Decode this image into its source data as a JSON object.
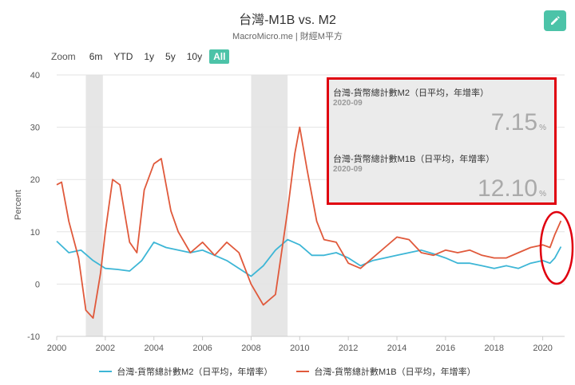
{
  "header": {
    "title": "台灣-M1B vs. M2",
    "subtitle": "MacroMicro.me | 財經M平方"
  },
  "zoom": {
    "label": "Zoom",
    "buttons": [
      "6m",
      "YTD",
      "1y",
      "5y",
      "10y",
      "All"
    ],
    "active": "All"
  },
  "colors": {
    "m2": "#3db6d6",
    "m1b": "#e0593b",
    "recession": "#e6e6e6",
    "highlight": "#e0000f",
    "accent": "#4cc3a8"
  },
  "tooltip": {
    "m2_name": "台灣-貨幣總計數M2（日平均，年增率）",
    "m2_date": "2020-09",
    "m2_value": "7.15",
    "m1b_name": "台灣-貨幣總計數M1B（日平均，年增率）",
    "m1b_date": "2020-09",
    "m1b_value": "12.10",
    "unit": "%"
  },
  "legend": {
    "m2": "台灣-貨幣總計數M2（日平均，年增率）",
    "m1b": "台灣-貨幣總計數M1B（日平均，年增率）"
  },
  "chart_data": {
    "type": "line",
    "title": "台灣-M1B vs. M2",
    "ylabel": "Percent",
    "xlim": [
      2000,
      2020.9
    ],
    "ylim": [
      -10,
      40
    ],
    "yticks": [
      -10,
      0,
      10,
      20,
      30,
      40
    ],
    "xticks": [
      2000,
      2002,
      2004,
      2006,
      2008,
      2010,
      2012,
      2014,
      2016,
      2018,
      2020
    ],
    "grid": true,
    "legend_position": "bottom",
    "shaded_periods": [
      [
        2001.2,
        2001.9
      ],
      [
        2008.0,
        2009.5
      ]
    ],
    "series": [
      {
        "name": "台灣-貨幣總計數M2（日平均，年增率）",
        "x": [
          2000.0,
          2000.5,
          2001.0,
          2001.5,
          2002.0,
          2002.5,
          2003.0,
          2003.5,
          2004.0,
          2004.5,
          2005.0,
          2005.5,
          2006.0,
          2006.5,
          2007.0,
          2007.5,
          2008.0,
          2008.5,
          2009.0,
          2009.5,
          2010.0,
          2010.5,
          2011.0,
          2011.5,
          2012.0,
          2012.5,
          2013.0,
          2013.5,
          2014.0,
          2014.5,
          2015.0,
          2015.5,
          2016.0,
          2016.5,
          2017.0,
          2017.5,
          2018.0,
          2018.5,
          2019.0,
          2019.5,
          2020.0,
          2020.3,
          2020.5,
          2020.75
        ],
        "y": [
          8.2,
          6.0,
          6.5,
          4.5,
          3.0,
          2.8,
          2.5,
          4.5,
          8.0,
          7.0,
          6.5,
          6.0,
          6.5,
          5.5,
          4.5,
          3.0,
          1.5,
          3.5,
          6.5,
          8.5,
          7.5,
          5.5,
          5.5,
          6.0,
          5.0,
          3.5,
          4.5,
          5.0,
          5.5,
          6.0,
          6.5,
          5.8,
          5.0,
          4.0,
          4.0,
          3.5,
          3.0,
          3.5,
          3.0,
          4.0,
          4.5,
          4.0,
          5.0,
          7.15
        ]
      },
      {
        "name": "台灣-貨幣總計數M1B（日平均，年增率）",
        "x": [
          2000.0,
          2000.2,
          2000.5,
          2000.9,
          2001.2,
          2001.5,
          2001.8,
          2002.0,
          2002.3,
          2002.6,
          2003.0,
          2003.3,
          2003.6,
          2004.0,
          2004.3,
          2004.7,
          2005.0,
          2005.5,
          2006.0,
          2006.5,
          2007.0,
          2007.5,
          2008.0,
          2008.5,
          2009.0,
          2009.5,
          2009.8,
          2010.0,
          2010.3,
          2010.7,
          2011.0,
          2011.5,
          2012.0,
          2012.5,
          2013.0,
          2013.5,
          2014.0,
          2014.5,
          2015.0,
          2015.5,
          2016.0,
          2016.5,
          2017.0,
          2017.5,
          2018.0,
          2018.5,
          2019.0,
          2019.5,
          2020.0,
          2020.3,
          2020.5,
          2020.75
        ],
        "y": [
          19.0,
          19.5,
          12.0,
          5.0,
          -5.0,
          -6.5,
          2.0,
          10.0,
          20.0,
          19.0,
          8.0,
          6.0,
          18.0,
          23.0,
          24.0,
          14.0,
          10.0,
          6.0,
          8.0,
          5.5,
          8.0,
          6.0,
          0.0,
          -4.0,
          -2.0,
          14.0,
          25.0,
          30.0,
          22.0,
          12.0,
          8.5,
          8.0,
          4.0,
          3.0,
          5.0,
          7.0,
          9.0,
          8.5,
          6.0,
          5.5,
          6.5,
          6.0,
          6.5,
          5.5,
          5.0,
          5.0,
          6.0,
          7.0,
          7.5,
          7.0,
          9.5,
          12.1
        ]
      }
    ]
  }
}
